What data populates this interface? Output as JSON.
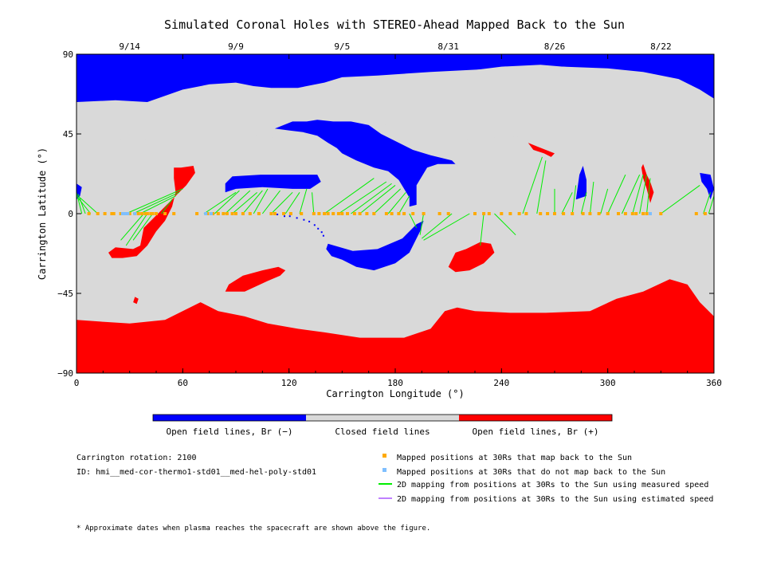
{
  "chart_data": {
    "type": "map",
    "title": "Simulated Coronal Holes with STEREO-Ahead Mapped Back to the Sun",
    "xlabel": "Carrington Longitude (°)",
    "ylabel": "Carrington Latitude (°)",
    "xlim": [
      0,
      360
    ],
    "ylim": [
      -90,
      90
    ],
    "x_ticks": [
      "0",
      "60",
      "120",
      "180",
      "240",
      "300",
      "360"
    ],
    "y_ticks": [
      "90",
      "45",
      "0",
      "-45",
      "-90"
    ],
    "top_dates": [
      {
        "label": "9/14",
        "lon": 30
      },
      {
        "label": "9/9",
        "lon": 90
      },
      {
        "label": "9/5",
        "lon": 150
      },
      {
        "label": "8/31",
        "lon": 210
      },
      {
        "label": "8/26",
        "lon": 270
      },
      {
        "label": "8/22",
        "lon": 330
      }
    ],
    "colors": {
      "open_neg": "#0000ff",
      "closed": "#d9d9d9",
      "open_pos": "#ff0000",
      "mapped": "#ffaa00",
      "unmapped": "#7fbfff",
      "measured": "#00ee00",
      "estimated": "#bf80ff"
    },
    "regions": {
      "north_blue": [
        [
          0,
          90
        ],
        [
          360,
          90
        ],
        [
          360,
          63
        ],
        [
          352,
          69
        ],
        [
          340,
          74
        ],
        [
          322,
          76
        ],
        [
          304,
          80
        ],
        [
          286,
          82
        ],
        [
          262,
          84
        ],
        [
          240,
          83
        ],
        [
          200,
          78
        ],
        [
          182,
          74
        ],
        [
          175,
          68
        ],
        [
          160,
          64
        ],
        [
          148,
          60
        ],
        [
          138,
          61
        ],
        [
          126,
          64
        ],
        [
          110,
          64
        ],
        [
          95,
          66
        ],
        [
          70,
          66
        ],
        [
          50,
          65
        ],
        [
          40,
          61
        ],
        [
          30,
          58
        ],
        [
          22,
          55
        ],
        [
          10,
          52
        ],
        [
          0,
          51
        ]
      ],
      "north_gray_cap": [
        [
          0,
          63
        ],
        [
          22,
          64
        ],
        [
          40,
          63
        ],
        [
          60,
          70
        ],
        [
          75,
          73
        ],
        [
          90,
          74
        ],
        [
          100,
          72
        ],
        [
          110,
          71
        ],
        [
          125,
          71
        ],
        [
          140,
          74
        ],
        [
          150,
          77
        ],
        [
          170,
          78
        ],
        [
          200,
          80
        ],
        [
          240,
          82
        ],
        [
          275,
          83
        ],
        [
          300,
          82
        ],
        [
          320,
          80
        ],
        [
          340,
          76
        ],
        [
          352,
          70
        ],
        [
          360,
          65
        ],
        [
          360,
          56
        ],
        [
          340,
          50
        ],
        [
          320,
          48
        ],
        [
          290,
          46
        ],
        [
          260,
          44
        ],
        [
          240,
          43
        ],
        [
          220,
          42
        ],
        [
          205,
          44
        ],
        [
          185,
          48
        ],
        [
          175,
          50
        ],
        [
          165,
          52
        ],
        [
          150,
          50
        ],
        [
          140,
          48
        ],
        [
          130,
          45
        ],
        [
          118,
          42
        ],
        [
          108,
          43
        ],
        [
          95,
          45
        ],
        [
          78,
          47
        ],
        [
          64,
          46
        ],
        [
          50,
          44
        ],
        [
          40,
          42
        ],
        [
          28,
          41
        ],
        [
          14,
          44
        ],
        [
          0,
          48
        ]
      ],
      "south_red": [
        [
          0,
          -60
        ],
        [
          15,
          -61
        ],
        [
          30,
          -62
        ],
        [
          50,
          -60
        ],
        [
          70,
          -50
        ],
        [
          80,
          -55
        ],
        [
          95,
          -58
        ],
        [
          108,
          -62
        ],
        [
          125,
          -65
        ],
        [
          140,
          -67
        ],
        [
          160,
          -70
        ],
        [
          185,
          -70
        ],
        [
          200,
          -65
        ],
        [
          208,
          -55
        ],
        [
          215,
          -53
        ],
        [
          225,
          -55
        ],
        [
          245,
          -56
        ],
        [
          265,
          -56
        ],
        [
          290,
          -55
        ],
        [
          305,
          -48
        ],
        [
          320,
          -44
        ],
        [
          335,
          -37
        ],
        [
          345,
          -40
        ],
        [
          352,
          -50
        ],
        [
          360,
          -58
        ],
        [
          360,
          -90
        ],
        [
          0,
          -90
        ]
      ],
      "blue_holes": [
        [
          [
            84,
            12
          ],
          [
            90,
            14
          ],
          [
            105,
            15
          ],
          [
            122,
            14
          ],
          [
            132,
            14
          ],
          [
            138,
            18
          ],
          [
            136,
            22
          ],
          [
            120,
            22
          ],
          [
            104,
            22
          ],
          [
            88,
            21
          ],
          [
            84,
            17
          ]
        ],
        [
          [
            112,
            48
          ],
          [
            120,
            47
          ],
          [
            128,
            46
          ],
          [
            136,
            44
          ],
          [
            142,
            40
          ],
          [
            147,
            37
          ],
          [
            150,
            34
          ],
          [
            158,
            30
          ],
          [
            168,
            26
          ],
          [
            176,
            24
          ],
          [
            182,
            19
          ],
          [
            188,
            9
          ],
          [
            188,
            4
          ],
          [
            192,
            5
          ],
          [
            192,
            16
          ],
          [
            198,
            26
          ],
          [
            204,
            28
          ],
          [
            214,
            28
          ],
          [
            216,
            26
          ],
          [
            212,
            30
          ],
          [
            200,
            33
          ],
          [
            190,
            36
          ],
          [
            180,
            41
          ],
          [
            172,
            45
          ],
          [
            165,
            50
          ],
          [
            155,
            52
          ],
          [
            145,
            52
          ],
          [
            136,
            53
          ],
          [
            130,
            52
          ],
          [
            122,
            52
          ]
        ],
        [
          [
            142,
            -17
          ],
          [
            156,
            -21
          ],
          [
            170,
            -20
          ],
          [
            184,
            -14
          ],
          [
            192,
            -6
          ],
          [
            196,
            -4
          ],
          [
            194,
            -10
          ],
          [
            188,
            -22
          ],
          [
            180,
            -28
          ],
          [
            168,
            -32
          ],
          [
            158,
            -30
          ],
          [
            150,
            -26
          ],
          [
            144,
            -24
          ],
          [
            141,
            -20
          ]
        ],
        [
          [
            282,
            8
          ],
          [
            288,
            10
          ],
          [
            288,
            19
          ],
          [
            286,
            27
          ],
          [
            284,
            22
          ],
          [
            283,
            15
          ]
        ],
        [
          [
            352,
            23
          ],
          [
            358,
            22
          ],
          [
            360,
            14
          ],
          [
            358,
            8
          ],
          [
            356,
            14
          ],
          [
            353,
            18
          ]
        ],
        [
          [
            0,
            17
          ],
          [
            3,
            15
          ],
          [
            2,
            10
          ],
          [
            0,
            8
          ]
        ]
      ],
      "red_holes": [
        [
          [
            55,
            26
          ],
          [
            59,
            26
          ],
          [
            66,
            27
          ],
          [
            67,
            23
          ],
          [
            62,
            16
          ],
          [
            56,
            10
          ],
          [
            50,
            4
          ],
          [
            44,
            -2
          ],
          [
            38,
            -8
          ],
          [
            36,
            -18
          ],
          [
            32,
            -20
          ],
          [
            22,
            -19
          ],
          [
            18,
            -22
          ],
          [
            20,
            -25
          ],
          [
            26,
            -25
          ],
          [
            34,
            -24
          ],
          [
            40,
            -18
          ],
          [
            45,
            -10
          ],
          [
            50,
            -4
          ],
          [
            54,
            4
          ],
          [
            56,
            12
          ],
          [
            55,
            20
          ]
        ],
        [
          [
            84,
            -44
          ],
          [
            95,
            -44
          ],
          [
            108,
            -38
          ],
          [
            115,
            -35
          ],
          [
            118,
            -32
          ],
          [
            114,
            -30
          ],
          [
            105,
            -32
          ],
          [
            94,
            -35
          ],
          [
            86,
            -40
          ]
        ],
        [
          [
            210,
            -30
          ],
          [
            214,
            -22
          ],
          [
            220,
            -20
          ],
          [
            228,
            -16
          ],
          [
            234,
            -17
          ],
          [
            236,
            -22
          ],
          [
            230,
            -28
          ],
          [
            222,
            -32
          ],
          [
            214,
            -33
          ]
        ],
        [
          [
            255,
            40
          ],
          [
            260,
            38
          ],
          [
            265,
            36
          ],
          [
            270,
            34
          ],
          [
            268,
            32
          ],
          [
            264,
            34
          ],
          [
            258,
            36
          ]
        ],
        [
          [
            320,
            28
          ],
          [
            322,
            22
          ],
          [
            324,
            18
          ],
          [
            326,
            12
          ],
          [
            324,
            6
          ],
          [
            322,
            14
          ],
          [
            320,
            20
          ],
          [
            319,
            26
          ]
        ],
        [
          [
            33,
            -47
          ],
          [
            35,
            -48
          ],
          [
            34,
            -51
          ],
          [
            32,
            -50
          ]
        ]
      ]
    },
    "mapped_points": [
      7,
      12,
      16,
      20,
      21,
      25,
      28,
      30,
      33,
      35,
      37,
      39,
      40,
      42,
      43,
      45,
      50,
      55,
      68,
      74,
      77,
      80,
      83,
      85,
      88,
      90,
      94,
      98,
      103,
      110,
      112,
      117,
      121,
      127,
      134,
      137,
      140,
      142,
      145,
      148,
      150,
      153,
      157,
      160,
      164,
      168,
      175,
      178,
      182,
      185,
      190,
      196,
      205,
      210,
      225,
      230,
      233,
      240,
      245,
      250,
      254,
      262,
      266,
      270,
      275,
      280,
      286,
      290,
      295,
      300,
      306,
      310,
      314,
      316,
      320,
      322,
      330,
      350,
      355
    ],
    "unmapped_points": [
      26,
      27,
      28,
      29,
      33,
      73,
      76,
      324
    ],
    "mapping_lines": [
      [
        3,
        0,
        0,
        12
      ],
      [
        5,
        0,
        1,
        11
      ],
      [
        8,
        0,
        0,
        10
      ],
      [
        12,
        0,
        2,
        9
      ],
      [
        28,
        0,
        60,
        14
      ],
      [
        32,
        0,
        58,
        12
      ],
      [
        36,
        0,
        56,
        10
      ],
      [
        38,
        0,
        25,
        -15
      ],
      [
        40,
        0,
        28,
        -18
      ],
      [
        43,
        0,
        32,
        -15
      ],
      [
        48,
        0,
        54,
        8
      ],
      [
        72,
        0,
        90,
        12
      ],
      [
        78,
        0,
        92,
        13
      ],
      [
        84,
        0,
        98,
        13
      ],
      [
        88,
        0,
        102,
        12
      ],
      [
        94,
        0,
        105,
        13
      ],
      [
        100,
        0,
        108,
        14
      ],
      [
        105,
        0,
        115,
        13
      ],
      [
        110,
        0,
        122,
        12
      ],
      [
        118,
        0,
        126,
        12
      ],
      [
        126,
        0,
        130,
        14
      ],
      [
        134,
        0,
        133,
        12
      ],
      [
        140,
        0,
        168,
        20
      ],
      [
        148,
        0,
        175,
        18
      ],
      [
        155,
        0,
        178,
        17
      ],
      [
        160,
        0,
        180,
        16
      ],
      [
        168,
        0,
        183,
        14
      ],
      [
        176,
        0,
        186,
        12
      ],
      [
        182,
        0,
        188,
        10
      ],
      [
        188,
        0,
        192,
        -8
      ],
      [
        196,
        0,
        194,
        -12
      ],
      [
        212,
        0,
        195,
        -14
      ],
      [
        222,
        0,
        196,
        -15
      ],
      [
        230,
        0,
        228,
        -18
      ],
      [
        236,
        0,
        248,
        -12
      ],
      [
        252,
        0,
        263,
        32
      ],
      [
        260,
        0,
        265,
        30
      ],
      [
        270,
        0,
        270,
        14
      ],
      [
        274,
        0,
        280,
        12
      ],
      [
        280,
        0,
        282,
        16
      ],
      [
        285,
        0,
        288,
        12
      ],
      [
        290,
        0,
        292,
        18
      ],
      [
        296,
        0,
        300,
        14
      ],
      [
        300,
        0,
        310,
        22
      ],
      [
        308,
        0,
        318,
        22
      ],
      [
        314,
        0,
        320,
        22
      ],
      [
        318,
        0,
        322,
        22
      ],
      [
        322,
        0,
        324,
        20
      ],
      [
        330,
        0,
        352,
        16
      ],
      [
        354,
        0,
        358,
        12
      ],
      [
        357,
        0,
        360,
        10
      ]
    ]
  },
  "colorbar": {
    "labels": [
      "Open field lines, Br (−)",
      "Closed field lines",
      "Open field lines, Br (+)"
    ],
    "colors": [
      "#0000ff",
      "#d9d9d9",
      "#ff0000"
    ]
  },
  "info": {
    "rotation": "Carrington rotation: 2100",
    "id": "ID: hmi__med-cor-thermo1-std01__med-hel-poly-std01"
  },
  "legend": [
    {
      "text": "Mapped positions at 30Rs that map back to the Sun",
      "color": "#ffaa00",
      "kind": "square"
    },
    {
      "text": "Mapped positions at 30Rs that do not map back to the Sun",
      "color": "#7fbfff",
      "kind": "square"
    },
    {
      "text": "2D mapping from positions at 30Rs to the Sun using measured speed",
      "color": "#00ee00",
      "kind": "line"
    },
    {
      "text": "2D mapping from positions at 30Rs to the Sun using estimated speed",
      "color": "#bf80ff",
      "kind": "line"
    }
  ],
  "footnote": "* Approximate dates when plasma reaches the spacecraft are shown above the figure."
}
